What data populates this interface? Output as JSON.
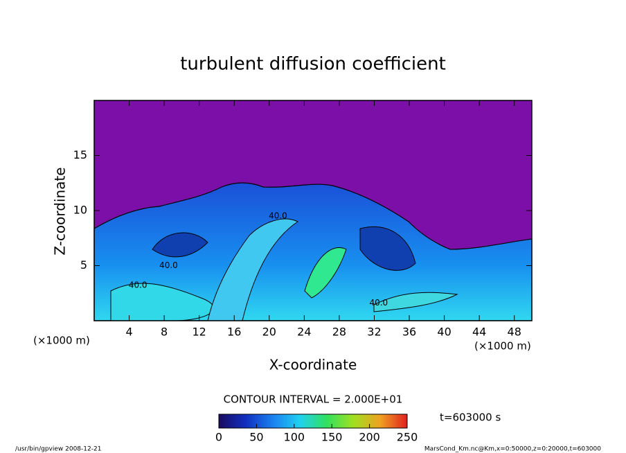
{
  "chart_data": {
    "type": "contour",
    "title": "turbulent diffusion coefficient",
    "x_label": "X-coordinate",
    "y_label": "Z-coordinate",
    "x_unit": "(×1000 m)",
    "y_unit": "(×1000 m)",
    "xlim": [
      0,
      50
    ],
    "ylim": [
      0,
      20
    ],
    "xticks": [
      4,
      8,
      12,
      16,
      20,
      24,
      28,
      32,
      36,
      40,
      44,
      48
    ],
    "yticks": [
      5,
      10,
      15
    ],
    "background_color": "#7b0fa8",
    "contour_labels": [
      {
        "value": 40,
        "label": "40.0",
        "x": 21,
        "z": 9.5
      },
      {
        "value": 40,
        "label": "40.0",
        "x": 8.5,
        "z": 5
      },
      {
        "value": 40,
        "label": "40.0",
        "x": 5,
        "z": 3.2
      },
      {
        "value": 40,
        "label": "40.0",
        "x": 32.5,
        "z": 1.6
      }
    ],
    "contour_interval": "CONTOUR INTERVAL = 2.000E+01",
    "colorbar": {
      "lim": [
        0,
        250
      ],
      "ticks": [
        0,
        50,
        100,
        150,
        200,
        250
      ],
      "colors": [
        "#1a0a5e",
        "#1030c0",
        "#1a80f0",
        "#20d0f0",
        "#30e060",
        "#a0e020",
        "#f0a020",
        "#e02020"
      ]
    },
    "time_label": "t=603000 s",
    "footer_left": "/usr/bin/gpview  2008-12-21",
    "footer_right": "MarsCond_Km.nc@Km,x=0:50000,z=0:20000,t=603000"
  }
}
